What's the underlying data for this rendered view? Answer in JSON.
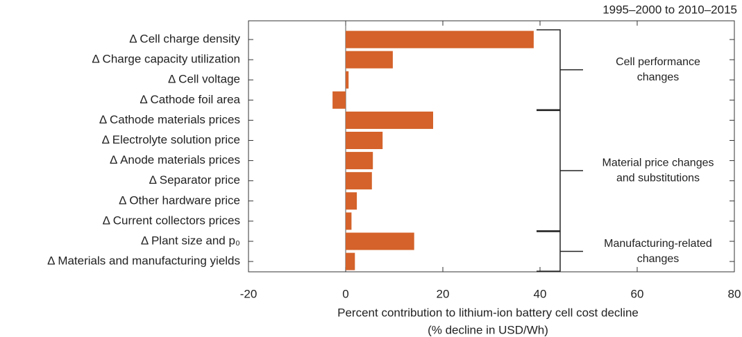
{
  "chart_data": {
    "type": "barh",
    "title": "1995–2000 to 2010–2015",
    "xlabel": [
      "Percent contribution to lithium-ion battery cell cost decline",
      "(% decline in USD/Wh)"
    ],
    "categories": [
      "Δ Cell charge density",
      "Δ Charge capacity utilization",
      "Δ Cell voltage",
      "Δ Cathode foil area",
      "Δ Cathode materials prices",
      "Δ Electrolyte solution price",
      "Δ Anode materials prices",
      "Δ Separator price",
      "Δ Other hardware price",
      "Δ Current collectors prices",
      "Δ Plant size and p₀",
      "Δ Materials and manufacturing yields"
    ],
    "values": [
      38.7,
      9.7,
      0.6,
      -2.7,
      18.0,
      7.6,
      5.6,
      5.4,
      2.3,
      1.2,
      14.1,
      1.9
    ],
    "color": "#d4622a",
    "xlim": [
      -20,
      80
    ],
    "xticks": [
      -20,
      0,
      20,
      40,
      60,
      80
    ],
    "annotations": [
      [
        "Cell performance",
        "changes"
      ],
      [
        "Material price changes",
        "and substitutions"
      ],
      [
        "Manufacturing-related",
        "changes"
      ]
    ]
  }
}
